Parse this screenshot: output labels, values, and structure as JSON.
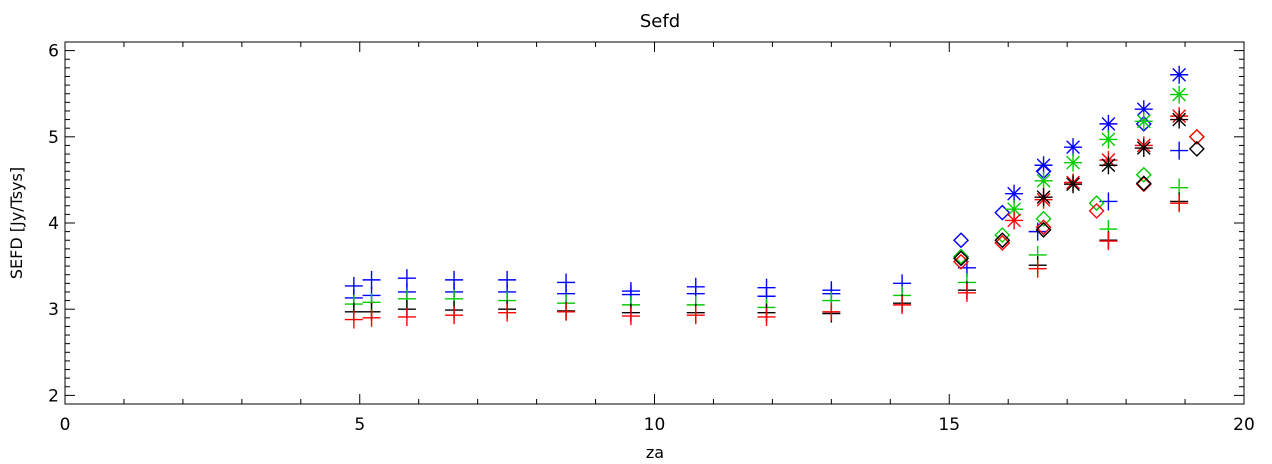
{
  "chart_data": {
    "type": "scatter",
    "title": "Sefd",
    "xlabel": "za",
    "ylabel": "SEFD [Jy/Tsys]",
    "xlim": [
      0,
      20
    ],
    "ylim": [
      1.9,
      6.1
    ],
    "x_ticks": [
      "0",
      "5",
      "10",
      "15",
      "20"
    ],
    "y_ticks": [
      "2",
      "3",
      "4",
      "5",
      "6"
    ],
    "grid": false,
    "legend": "none",
    "series": [
      {
        "color": "#0000ff",
        "marker": "plus",
        "points": [
          [
            4.9,
            3.27
          ],
          [
            5.2,
            3.34
          ],
          [
            5.8,
            3.36
          ],
          [
            6.6,
            3.34
          ],
          [
            7.5,
            3.34
          ],
          [
            8.5,
            3.31
          ],
          [
            9.6,
            3.21
          ],
          [
            10.7,
            3.26
          ],
          [
            11.9,
            3.25
          ],
          [
            13.0,
            3.22
          ],
          [
            14.2,
            3.3
          ],
          [
            15.3,
            3.48
          ],
          [
            16.5,
            3.9
          ],
          [
            17.7,
            4.25
          ],
          [
            18.9,
            4.84
          ],
          [
            4.9,
            3.13
          ],
          [
            5.2,
            3.16
          ],
          [
            5.8,
            3.2
          ],
          [
            6.6,
            3.2
          ],
          [
            7.5,
            3.2
          ],
          [
            8.5,
            3.18
          ],
          [
            9.6,
            3.17
          ],
          [
            10.7,
            3.18
          ],
          [
            11.9,
            3.15
          ],
          [
            13.0,
            3.18
          ]
        ]
      },
      {
        "color": "#00cc00",
        "marker": "plus",
        "points": [
          [
            4.9,
            3.06
          ],
          [
            5.2,
            3.08
          ],
          [
            5.8,
            3.12
          ],
          [
            6.6,
            3.12
          ],
          [
            7.5,
            3.1
          ],
          [
            8.5,
            3.07
          ],
          [
            9.6,
            3.05
          ],
          [
            10.7,
            3.05
          ],
          [
            11.9,
            3.02
          ],
          [
            13.0,
            3.1
          ],
          [
            14.2,
            3.16
          ],
          [
            15.3,
            3.31
          ],
          [
            16.5,
            3.63
          ],
          [
            17.7,
            3.93
          ],
          [
            18.9,
            4.41
          ]
        ]
      },
      {
        "color": "#000000",
        "marker": "plus",
        "points": [
          [
            4.9,
            2.97
          ],
          [
            5.2,
            2.97
          ],
          [
            5.8,
            3.0
          ],
          [
            6.6,
            2.99
          ],
          [
            7.5,
            3.0
          ],
          [
            8.5,
            2.98
          ],
          [
            9.6,
            2.96
          ],
          [
            10.7,
            2.96
          ],
          [
            11.9,
            2.96
          ],
          [
            13.0,
            2.95
          ],
          [
            14.2,
            3.07
          ],
          [
            15.3,
            3.22
          ],
          [
            16.5,
            3.51
          ],
          [
            17.7,
            3.8
          ],
          [
            18.9,
            4.25
          ]
        ]
      },
      {
        "color": "#ff0000",
        "marker": "plus",
        "points": [
          [
            4.9,
            2.88
          ],
          [
            5.2,
            2.9
          ],
          [
            5.8,
            2.91
          ],
          [
            6.6,
            2.93
          ],
          [
            7.5,
            2.96
          ],
          [
            8.5,
            2.97
          ],
          [
            9.6,
            2.92
          ],
          [
            10.7,
            2.93
          ],
          [
            11.9,
            2.91
          ],
          [
            13.0,
            2.97
          ],
          [
            14.2,
            3.05
          ],
          [
            15.3,
            3.19
          ],
          [
            16.5,
            3.47
          ],
          [
            17.7,
            3.79
          ],
          [
            18.9,
            4.23
          ]
        ]
      },
      {
        "color": "#0000ff",
        "marker": "diamond",
        "points": [
          [
            15.2,
            3.8
          ],
          [
            15.9,
            4.12
          ],
          [
            16.6,
            4.6
          ],
          [
            18.3,
            5.15
          ]
        ]
      },
      {
        "color": "#00cc00",
        "marker": "diamond",
        "points": [
          [
            15.2,
            3.61
          ],
          [
            15.9,
            3.86
          ],
          [
            16.6,
            4.05
          ],
          [
            17.5,
            4.23
          ],
          [
            18.3,
            4.56
          ],
          [
            19.2,
            5.0
          ]
        ]
      },
      {
        "color": "#ff0000",
        "marker": "diamond",
        "points": [
          [
            15.2,
            3.55
          ],
          [
            15.9,
            3.77
          ],
          [
            16.6,
            3.95
          ],
          [
            17.5,
            4.14
          ],
          [
            18.3,
            4.45
          ],
          [
            19.2,
            5.0
          ]
        ]
      },
      {
        "color": "#000000",
        "marker": "diamond",
        "points": [
          [
            15.2,
            3.59
          ],
          [
            15.9,
            3.8
          ],
          [
            16.6,
            3.92
          ],
          [
            18.3,
            4.46
          ],
          [
            19.2,
            4.86
          ]
        ]
      },
      {
        "color": "#0000ff",
        "marker": "asterisk",
        "points": [
          [
            16.1,
            4.34
          ],
          [
            16.6,
            4.67
          ],
          [
            17.1,
            4.88
          ],
          [
            17.7,
            5.15
          ],
          [
            18.3,
            5.32
          ],
          [
            18.9,
            5.72
          ]
        ]
      },
      {
        "color": "#00cc00",
        "marker": "asterisk",
        "points": [
          [
            16.1,
            4.16
          ],
          [
            16.6,
            4.49
          ],
          [
            17.1,
            4.7
          ],
          [
            17.7,
            4.97
          ],
          [
            18.3,
            5.18
          ],
          [
            18.9,
            5.49
          ]
        ]
      },
      {
        "color": "#ff0000",
        "marker": "asterisk",
        "points": [
          [
            16.1,
            4.03
          ],
          [
            16.6,
            4.27
          ],
          [
            17.1,
            4.47
          ],
          [
            17.7,
            4.73
          ],
          [
            18.3,
            4.9
          ],
          [
            18.9,
            5.24
          ]
        ]
      },
      {
        "color": "#000000",
        "marker": "asterisk",
        "points": [
          [
            16.6,
            4.3
          ],
          [
            17.1,
            4.45
          ],
          [
            17.7,
            4.67
          ],
          [
            18.3,
            4.87
          ],
          [
            18.9,
            5.2
          ]
        ]
      }
    ]
  }
}
